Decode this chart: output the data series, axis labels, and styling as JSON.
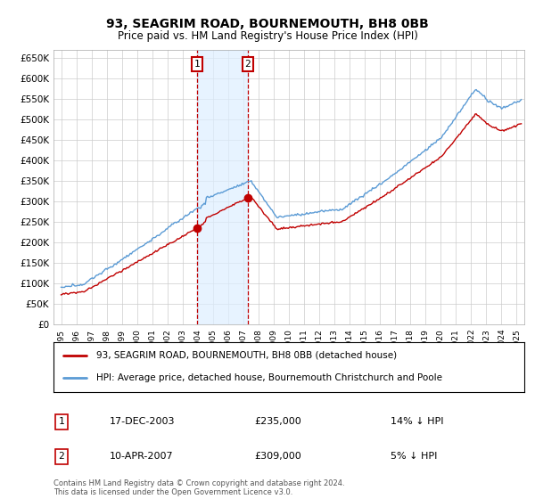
{
  "title": "93, SEAGRIM ROAD, BOURNEMOUTH, BH8 0BB",
  "subtitle": "Price paid vs. HM Land Registry's House Price Index (HPI)",
  "legend_line1": "93, SEAGRIM ROAD, BOURNEMOUTH, BH8 0BB (detached house)",
  "legend_line2": "HPI: Average price, detached house, Bournemouth Christchurch and Poole",
  "footnote": "Contains HM Land Registry data © Crown copyright and database right 2024.\nThis data is licensed under the Open Government Licence v3.0.",
  "sale1_date": "17-DEC-2003",
  "sale1_price": "£235,000",
  "sale1_hpi": "14% ↓ HPI",
  "sale2_date": "10-APR-2007",
  "sale2_price": "£309,000",
  "sale2_hpi": "5% ↓ HPI",
  "sale1_x": 2003.97,
  "sale1_y": 235000,
  "sale2_x": 2007.28,
  "sale2_y": 309000,
  "vline1_x": 2003.97,
  "vline2_x": 2007.28,
  "ylim": [
    0,
    670000
  ],
  "xlim_start": 1994.5,
  "xlim_end": 2025.5,
  "hpi_color": "#5b9bd5",
  "price_color": "#c00000",
  "bg_color": "#ffffff",
  "grid_color": "#cccccc",
  "shade_color": "#ddeeff",
  "yticks": [
    0,
    50000,
    100000,
    150000,
    200000,
    250000,
    300000,
    350000,
    400000,
    450000,
    500000,
    550000,
    600000,
    650000
  ],
  "xticks": [
    1995,
    1996,
    1997,
    1998,
    1999,
    2000,
    2001,
    2002,
    2003,
    2004,
    2005,
    2006,
    2007,
    2008,
    2009,
    2010,
    2011,
    2012,
    2013,
    2014,
    2015,
    2016,
    2017,
    2018,
    2019,
    2020,
    2021,
    2022,
    2023,
    2024,
    2025
  ]
}
